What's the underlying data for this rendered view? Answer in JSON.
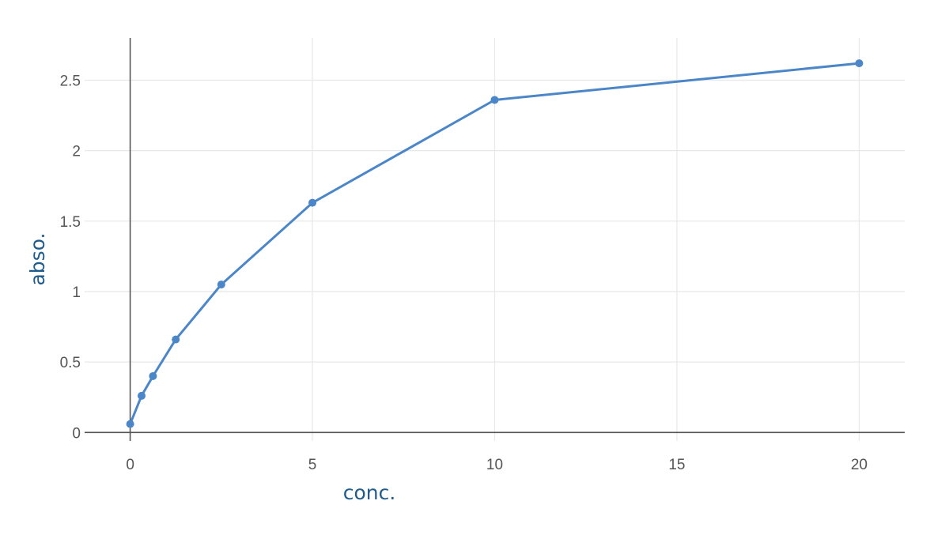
{
  "chart_data": {
    "type": "line",
    "title": "",
    "xlabel": "conc.",
    "ylabel": "abso.",
    "x": [
      0,
      0.3125,
      0.625,
      1.25,
      2.5,
      5,
      10,
      20
    ],
    "series": [
      {
        "values": [
          0.06,
          0.26,
          0.4,
          0.66,
          1.05,
          1.63,
          2.36,
          2.62
        ]
      }
    ],
    "xlim": [
      -1.25,
      21.25
    ],
    "ylim": [
      -0.06,
      2.8
    ],
    "xticks": [
      0,
      5,
      10,
      15,
      20
    ],
    "yticks": [
      0,
      0.5,
      1,
      1.5,
      2,
      2.5
    ],
    "xtick_labels": [
      "0",
      "5",
      "10",
      "15",
      "20"
    ],
    "ytick_labels": [
      "0",
      "0.5",
      "1",
      "1.5",
      "2",
      "2.5"
    ],
    "grid": true,
    "legend": "none",
    "colors": {
      "line": "#4a86c8",
      "axis_title": "#1f5c8c",
      "grid": "#e8e8e8",
      "zeroline": "#555555",
      "tick_text": "#555555"
    }
  }
}
